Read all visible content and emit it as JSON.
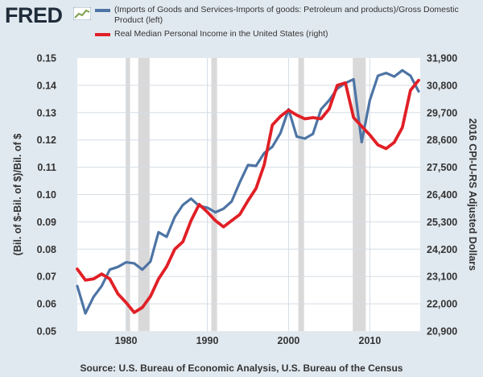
{
  "header": {
    "logo_text": "FRED"
  },
  "colors": {
    "background": "#e1e9f0",
    "plot_background": "#ffffff",
    "series_left": "#4d74a5",
    "series_right": "#e11f26",
    "recession": "#d9d9d9",
    "grid": "#d5dde5"
  },
  "legend": [
    {
      "label": "(Imports of Goods and Services-Imports of goods: Petroleum and products)/Gross Domestic Product (left)",
      "color": "#4d74a5"
    },
    {
      "label": "Real Median Personal Income in the United States (right)",
      "color": "#e11f26"
    }
  ],
  "source": "Source: U.S. Bureau of Economic Analysis, U.S. Bureau of the Census",
  "chart_data": {
    "type": "line",
    "xlim": [
      1974,
      2016.2
    ],
    "ylim_left": [
      0.05,
      0.15
    ],
    "ylim_right": [
      20900,
      31900
    ],
    "ylabel_left": "(Bil. of $-Bil. of $)/Bil. of $",
    "ylabel_right": "2016 CPI-U-RS Adjusted Dollars",
    "x_ticks": [
      1980,
      1990,
      2000,
      2010
    ],
    "x_tick_labels": [
      "1980",
      "1990",
      "2000",
      "2010"
    ],
    "y_ticks_left": [
      "0.05",
      "0.06",
      "0.07",
      "0.08",
      "0.09",
      "0.10",
      "0.11",
      "0.12",
      "0.13",
      "0.14",
      "0.15"
    ],
    "y_ticks_right": [
      "20,900",
      "22,000",
      "23,100",
      "24,200",
      "25,300",
      "26,400",
      "27,500",
      "28,600",
      "29,700",
      "30,800",
      "31,900"
    ],
    "recessions": [
      [
        1980.0,
        1980.5
      ],
      [
        1981.5,
        1982.9
      ],
      [
        1990.5,
        1991.2
      ],
      [
        2001.2,
        2001.9
      ],
      [
        2007.9,
        2009.5
      ]
    ],
    "series": [
      {
        "name": "(Imports of Goods and Services-Imports of goods: Petroleum and products)/Gross Domestic Product (left)",
        "axis": "left",
        "x": [
          1974,
          1975,
          1976,
          1977,
          1978,
          1979,
          1980,
          1981,
          1982,
          1983,
          1984,
          1985,
          1986,
          1987,
          1988,
          1989,
          1990,
          1991,
          1992,
          1993,
          1994,
          1995,
          1996,
          1997,
          1998,
          1999,
          2000,
          2001,
          2002,
          2003,
          2004,
          2005,
          2006,
          2007,
          2008,
          2009,
          2010,
          2011,
          2012,
          2013,
          2014,
          2015,
          2016
        ],
        "y": [
          0.0665,
          0.0565,
          0.0625,
          0.0665,
          0.0725,
          0.0735,
          0.0752,
          0.0748,
          0.0725,
          0.0755,
          0.0862,
          0.0845,
          0.0918,
          0.0962,
          0.0985,
          0.0958,
          0.0952,
          0.0935,
          0.0948,
          0.0975,
          0.1045,
          0.1108,
          0.1105,
          0.1152,
          0.1175,
          0.1225,
          0.1312,
          0.1212,
          0.1205,
          0.1222,
          0.1312,
          0.1345,
          0.1388,
          0.1408,
          0.1422,
          0.1192,
          0.1345,
          0.1435,
          0.1445,
          0.1432,
          0.1455,
          0.1435,
          0.1378
        ]
      },
      {
        "name": "Real Median Personal Income in the United States (right)",
        "axis": "right",
        "x": [
          1974,
          1975,
          1976,
          1977,
          1978,
          1979,
          1980,
          1981,
          1982,
          1983,
          1984,
          1985,
          1986,
          1987,
          1988,
          1989,
          1990,
          1991,
          1992,
          1993,
          1994,
          1995,
          1996,
          1997,
          1998,
          1999,
          2000,
          2001,
          2002,
          2003,
          2004,
          2005,
          2006,
          2007,
          2008,
          2009,
          2010,
          2011,
          2012,
          2013,
          2014,
          2015,
          2016
        ],
        "y": [
          23400,
          22950,
          23000,
          23200,
          23000,
          22400,
          22050,
          21650,
          21850,
          22300,
          23000,
          23500,
          24200,
          24500,
          25350,
          26000,
          25700,
          25350,
          25100,
          25350,
          25600,
          26150,
          26650,
          27600,
          29200,
          29550,
          29800,
          29600,
          29450,
          29500,
          29450,
          29850,
          30800,
          30900,
          29500,
          29150,
          28800,
          28400,
          28250,
          28500,
          29100,
          30600,
          31000
        ]
      }
    ]
  }
}
